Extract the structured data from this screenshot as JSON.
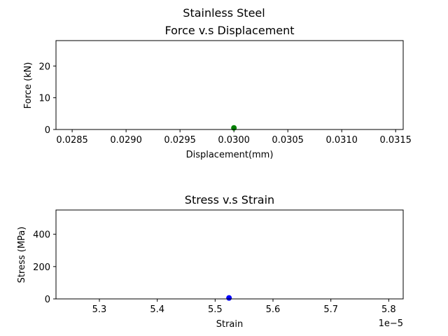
{
  "figure": {
    "suptitle": "Stainless Steel"
  },
  "chart_data": [
    {
      "type": "scatter",
      "title": "Force v.s Displacement",
      "xlabel": "Displacement(mm)",
      "ylabel": "Force (kN)",
      "xlim": [
        0.02835,
        0.03157
      ],
      "ylim": [
        0,
        28
      ],
      "xticks": [
        0.0285,
        0.029,
        0.0295,
        0.03,
        0.0305,
        0.031,
        0.0315
      ],
      "xtick_labels": [
        "0.0285",
        "0.0290",
        "0.0295",
        "0.0300",
        "0.0305",
        "0.0310",
        "0.0315"
      ],
      "yticks": [
        0,
        10,
        20
      ],
      "ytick_labels": [
        "0",
        "10",
        "20"
      ],
      "x_offset_label": "",
      "grid": false,
      "points": [
        {
          "x": 0.03,
          "y": 0.5
        }
      ],
      "color": "#008000"
    },
    {
      "type": "scatter",
      "title": "Stress v.s Strain",
      "xlabel": "Strain",
      "ylabel": "Stress (MPa)",
      "xlim": [
        5.225,
        5.825
      ],
      "ylim": [
        0,
        550
      ],
      "xticks": [
        5.3,
        5.4,
        5.5,
        5.6,
        5.7,
        5.8
      ],
      "xtick_labels": [
        "5.3",
        "5.4",
        "5.5",
        "5.6",
        "5.7",
        "5.8"
      ],
      "yticks": [
        0,
        200,
        400
      ],
      "ytick_labels": [
        "0",
        "200",
        "400"
      ],
      "x_offset_label": "1e−5",
      "grid": false,
      "points": [
        {
          "x": 5.524,
          "y": 6
        }
      ],
      "color": "#0000ff"
    }
  ]
}
